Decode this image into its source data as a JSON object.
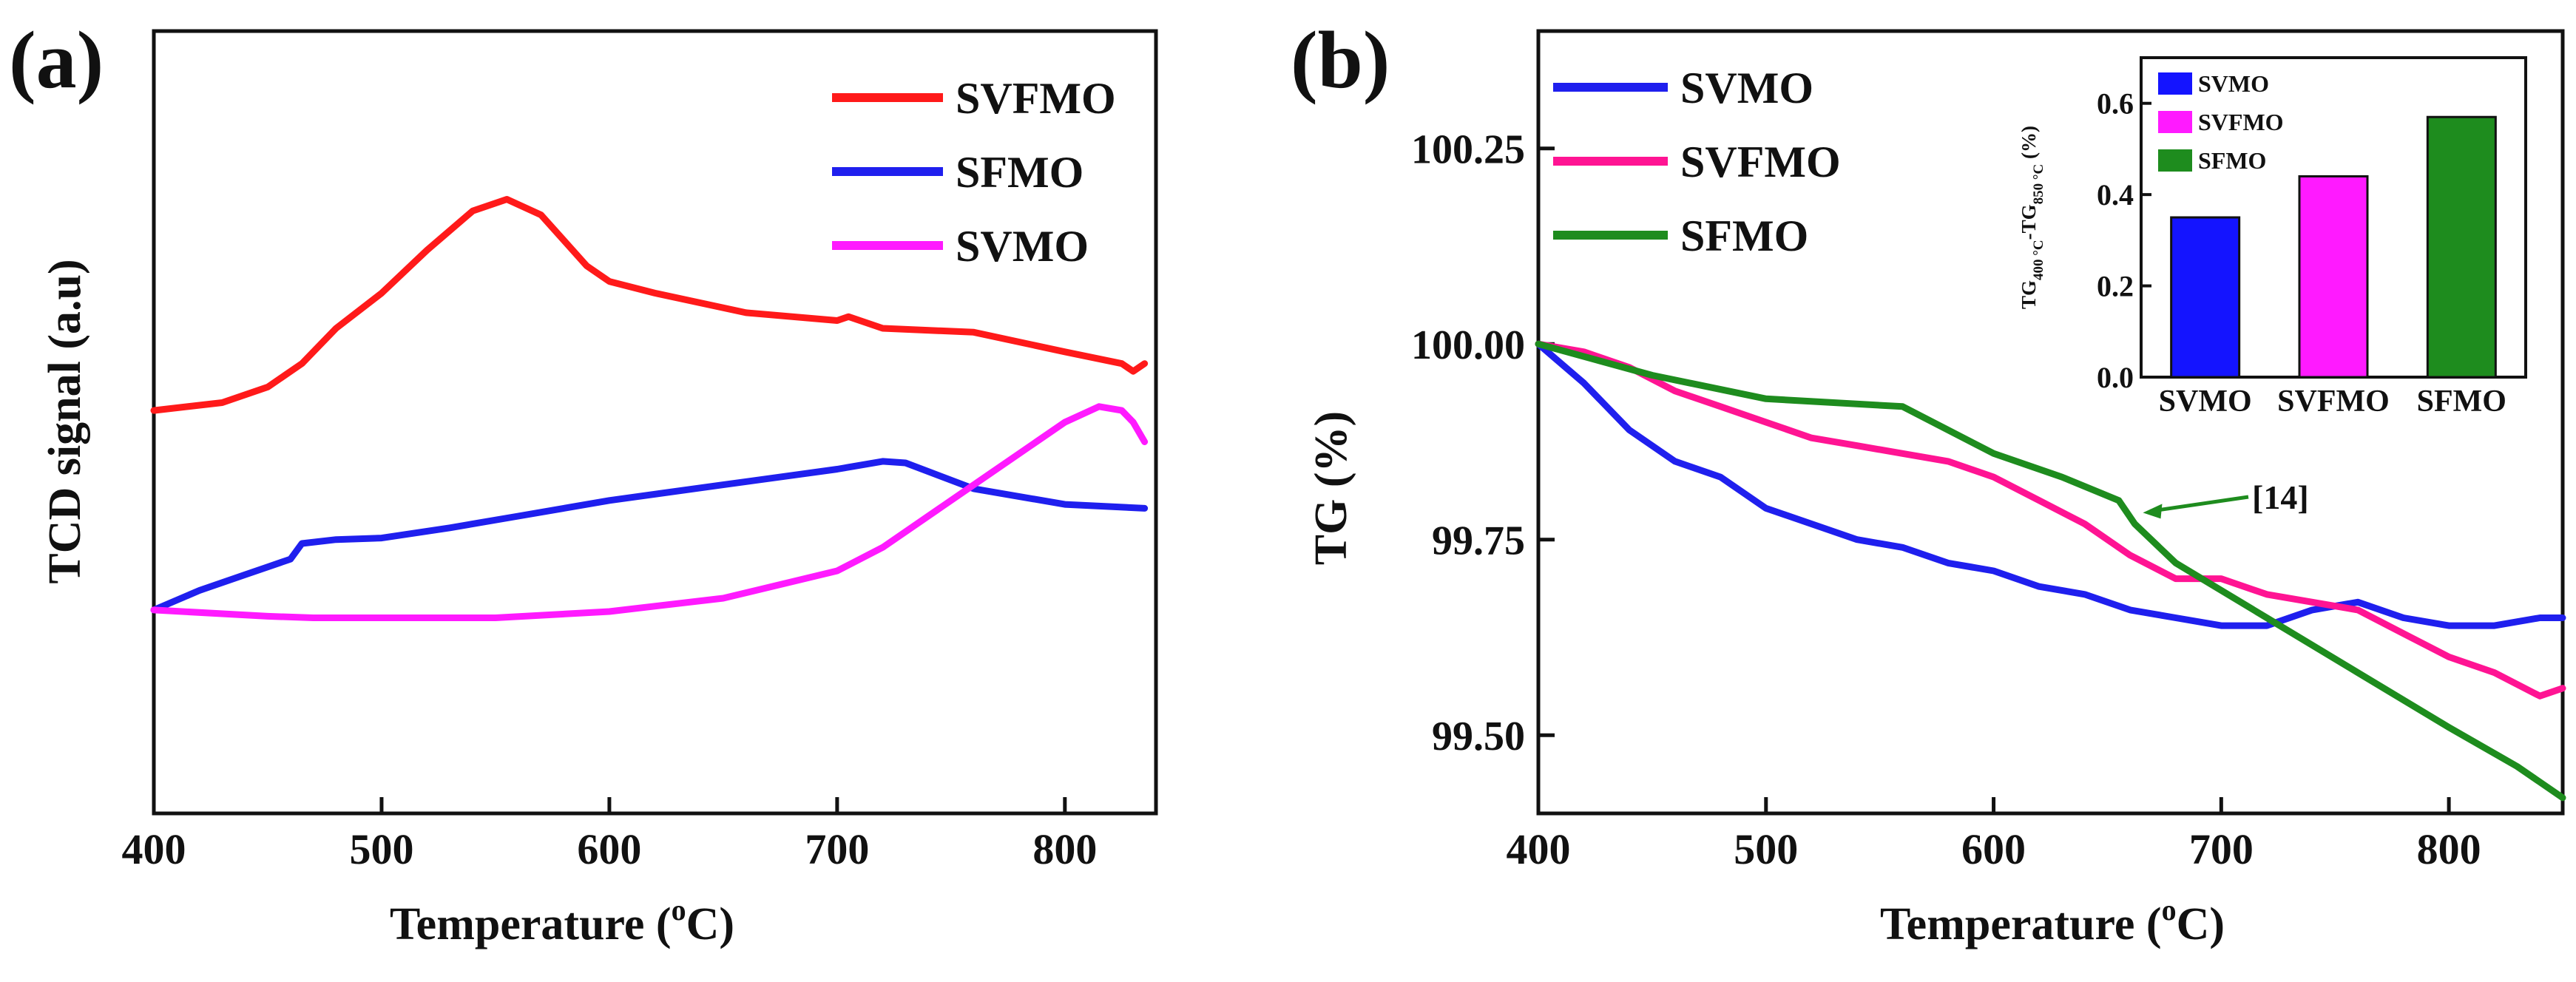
{
  "chart_data": [
    {
      "panel_label": "(a)",
      "type": "line",
      "title": "",
      "xlabel_main": "Temperature (",
      "xlabel_sup": "o",
      "xlabel_tail": "C)",
      "ylabel": "TCD signal (a.u)",
      "xlim": [
        400,
        840
      ],
      "ylim": [
        0,
        1
      ],
      "xticks": [
        "400",
        "500",
        "600",
        "700",
        "800"
      ],
      "xtick_values": [
        400,
        500,
        600,
        700,
        800
      ],
      "yticks": [],
      "legend_position": "top-right",
      "series": [
        {
          "name": "SVFMO",
          "color": "#ff1a1a",
          "x": [
            400,
            430,
            450,
            465,
            480,
            500,
            520,
            540,
            555,
            570,
            590,
            600,
            620,
            660,
            700,
            705,
            720,
            760,
            800,
            825,
            830,
            835
          ],
          "y": [
            0.515,
            0.525,
            0.545,
            0.575,
            0.62,
            0.665,
            0.72,
            0.77,
            0.785,
            0.765,
            0.7,
            0.68,
            0.665,
            0.64,
            0.63,
            0.635,
            0.62,
            0.615,
            0.59,
            0.575,
            0.565,
            0.575
          ]
        },
        {
          "name": "SFMO",
          "color": "#1f1fee",
          "x": [
            400,
            420,
            440,
            460,
            465,
            480,
            500,
            530,
            560,
            600,
            650,
            700,
            720,
            730,
            760,
            800,
            835
          ],
          "y": [
            0.26,
            0.285,
            0.305,
            0.325,
            0.345,
            0.35,
            0.352,
            0.365,
            0.38,
            0.4,
            0.42,
            0.44,
            0.45,
            0.448,
            0.415,
            0.395,
            0.39
          ]
        },
        {
          "name": "SVMO",
          "color": "#ff1aff",
          "x": [
            400,
            450,
            470,
            500,
            550,
            600,
            650,
            700,
            720,
            750,
            780,
            800,
            815,
            825,
            830,
            835
          ],
          "y": [
            0.26,
            0.252,
            0.25,
            0.25,
            0.25,
            0.258,
            0.275,
            0.31,
            0.34,
            0.4,
            0.46,
            0.5,
            0.52,
            0.515,
            0.5,
            0.475
          ]
        }
      ]
    },
    {
      "panel_label": "(b)",
      "type": "line",
      "title": "",
      "xlabel_main": "Temperature (",
      "xlabel_sup": "o",
      "xlabel_tail": "C)",
      "ylabel": "TG (%)",
      "xlim": [
        400,
        850
      ],
      "ylim": [
        99.4,
        100.4
      ],
      "xticks": [
        "400",
        "500",
        "600",
        "700",
        "800"
      ],
      "xtick_values": [
        400,
        500,
        600,
        700,
        800
      ],
      "yticks": [
        "100.25",
        "100.00",
        "99.75",
        "99.50"
      ],
      "ytick_values": [
        100.25,
        100.0,
        99.75,
        99.5
      ],
      "legend_position": "top-left",
      "annotation": {
        "text": "[14]",
        "x": 663,
        "y": 99.79
      },
      "series": [
        {
          "name": "SVMO",
          "color": "#1f1fee",
          "x": [
            400,
            420,
            440,
            460,
            480,
            500,
            520,
            540,
            560,
            580,
            600,
            620,
            640,
            660,
            680,
            700,
            720,
            740,
            760,
            780,
            800,
            820,
            840,
            850
          ],
          "y": [
            100.0,
            99.95,
            99.89,
            99.85,
            99.83,
            99.79,
            99.77,
            99.75,
            99.74,
            99.72,
            99.71,
            99.69,
            99.68,
            99.66,
            99.65,
            99.64,
            99.64,
            99.66,
            99.67,
            99.65,
            99.64,
            99.64,
            99.65,
            99.65
          ]
        },
        {
          "name": "SVFMO",
          "color": "#ff1493",
          "x": [
            400,
            420,
            440,
            460,
            480,
            500,
            520,
            540,
            560,
            580,
            600,
            620,
            640,
            660,
            680,
            700,
            720,
            740,
            760,
            780,
            800,
            820,
            840,
            850
          ],
          "y": [
            100.0,
            99.99,
            99.97,
            99.94,
            99.92,
            99.9,
            99.88,
            99.87,
            99.86,
            99.85,
            99.83,
            99.8,
            99.77,
            99.73,
            99.7,
            99.7,
            99.68,
            99.67,
            99.66,
            99.63,
            99.6,
            99.58,
            99.55,
            99.56
          ]
        },
        {
          "name": "SFMO",
          "color": "#1e8c1e",
          "x": [
            400,
            450,
            500,
            560,
            600,
            630,
            655,
            662,
            680,
            720,
            760,
            800,
            830,
            850
          ],
          "y": [
            100.0,
            99.96,
            99.93,
            99.92,
            99.86,
            99.83,
            99.8,
            99.77,
            99.72,
            99.65,
            99.58,
            99.51,
            99.46,
            99.42
          ]
        }
      ],
      "inset": {
        "type": "bar",
        "ylabel": "TG400 °C-TG850 °C (%)",
        "ylabel_main": "TG",
        "ylabel_sub1": "400 °C",
        "ylabel_mid": "-TG",
        "ylabel_sub2": "850 °C",
        "ylabel_tail": " (%)",
        "categories": [
          "SVMO",
          "SVFMO",
          "SFMO"
        ],
        "values": [
          0.35,
          0.44,
          0.57
        ],
        "colors": [
          "#1414ff",
          "#ff1aff",
          "#1e8c1e"
        ],
        "ylim": [
          0,
          0.7
        ],
        "yticks": [
          "0.0",
          "0.2",
          "0.4",
          "0.6"
        ],
        "ytick_values": [
          0,
          0.2,
          0.4,
          0.6
        ],
        "legend_position": "top-left",
        "legend": [
          "SVMO",
          "SVFMO",
          "SFMO"
        ]
      }
    }
  ]
}
